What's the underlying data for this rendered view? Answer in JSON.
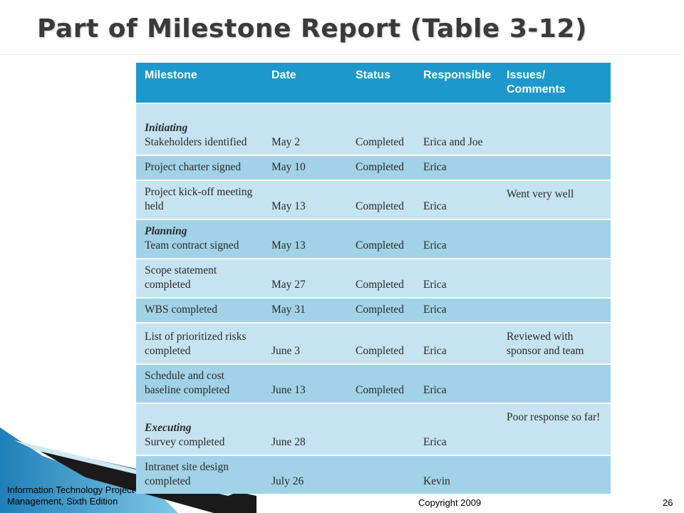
{
  "slide": {
    "title": "Part of Milestone Report (Table 3-12)"
  },
  "table": {
    "headers": [
      "Milestone",
      "Date",
      "Status",
      "Responsible",
      "Issues/\nComments"
    ],
    "rows": [
      {
        "phase": "Initiating",
        "milestone": "Stakeholders identified",
        "date": "May 2",
        "status": "Completed",
        "responsible": "Erica and Joe",
        "comments": ""
      },
      {
        "phase": "",
        "milestone": "Project charter signed",
        "date": "May 10",
        "status": "Completed",
        "responsible": "Erica",
        "comments": ""
      },
      {
        "phase": "",
        "milestone": "Project kick-off meeting held",
        "date": "May 13",
        "status": "Completed",
        "responsible": "Erica",
        "comments": "Went very well"
      },
      {
        "phase": "Planning",
        "milestone": "Team contract signed",
        "date": "May 13",
        "status": "Completed",
        "responsible": "Erica",
        "comments": ""
      },
      {
        "phase": "",
        "milestone": "Scope statement completed",
        "date": "May 27",
        "status": "Completed",
        "responsible": "Erica",
        "comments": ""
      },
      {
        "phase": "",
        "milestone": "WBS completed",
        "date": "May 31",
        "status": "Completed",
        "responsible": "Erica",
        "comments": ""
      },
      {
        "phase": "",
        "milestone": "List of prioritized risks completed",
        "date": "June 3",
        "status": "Completed",
        "responsible": "Erica",
        "comments": "Reviewed with sponsor and team"
      },
      {
        "phase": "",
        "milestone": "Schedule and cost baseline completed",
        "date": "June 13",
        "status": "Completed",
        "responsible": "Erica",
        "comments": ""
      },
      {
        "phase": "Executing",
        "milestone": "Survey completed",
        "date": "June 28",
        "status": "",
        "responsible": "Erica",
        "comments": "Poor response so far!"
      },
      {
        "phase": "",
        "milestone": "Intranet site design completed",
        "date": "July 26",
        "status": "",
        "responsible": "Kevin",
        "comments": ""
      }
    ]
  },
  "footer": {
    "book": "Information Technology Project Management, Sixth Edition",
    "copyright": "Copyright 2009",
    "page": "26"
  },
  "colors": {
    "header": "#1c98cc",
    "row_light": "#c6e3f1",
    "row_dark": "#a2d2e7",
    "accent": "#2aa6d6"
  }
}
